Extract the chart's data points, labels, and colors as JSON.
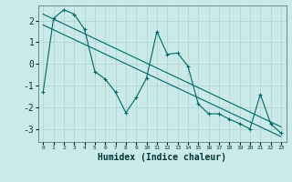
{
  "xlabel": "Humidex (Indice chaleur)",
  "bg_color": "#caeaea",
  "grid_color": "#b0d0d0",
  "line_color": "#006666",
  "xlim": [
    -0.5,
    23.5
  ],
  "ylim": [
    -3.6,
    2.7
  ],
  "xticks": [
    0,
    1,
    2,
    3,
    4,
    5,
    6,
    7,
    8,
    9,
    10,
    11,
    12,
    13,
    14,
    15,
    16,
    17,
    18,
    19,
    20,
    21,
    22,
    23
  ],
  "yticks": [
    -3,
    -2,
    -1,
    0,
    1,
    2
  ],
  "main_data_x": [
    0,
    1,
    2,
    3,
    4,
    5,
    6,
    7,
    8,
    9,
    10,
    11,
    12,
    13,
    14,
    15,
    16,
    17,
    18,
    19,
    20,
    21,
    22,
    23
  ],
  "main_data_y": [
    -1.3,
    2.1,
    2.5,
    2.3,
    1.6,
    -0.35,
    -0.7,
    -1.3,
    -2.25,
    -1.55,
    -0.65,
    1.5,
    0.45,
    0.5,
    -0.1,
    -1.85,
    -2.3,
    -2.3,
    -2.55,
    -2.75,
    -3.0,
    -1.4,
    -2.75,
    -3.2
  ],
  "line2_x": [
    0,
    23
  ],
  "line2_y": [
    2.3,
    -2.9
  ],
  "line3_x": [
    0,
    23
  ],
  "line3_y": [
    1.8,
    -3.35
  ]
}
